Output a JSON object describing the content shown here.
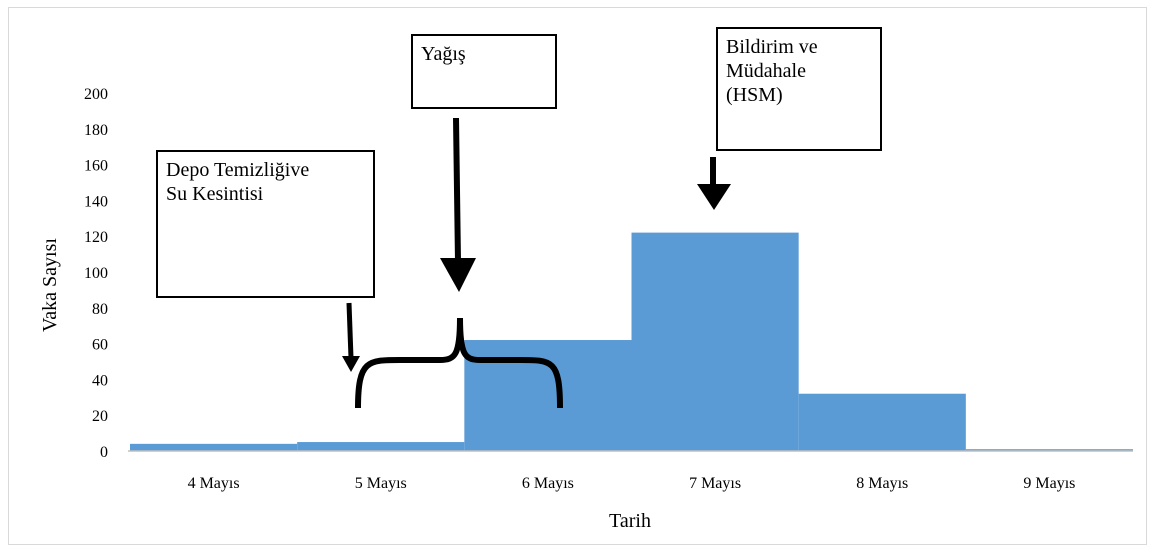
{
  "chart_data": {
    "type": "bar",
    "categories": [
      "4 Mayıs",
      "5 Mayıs",
      "6 Mayıs",
      "7 Mayıs",
      "8 Mayıs",
      "9 Mayıs"
    ],
    "values": [
      4,
      5,
      62,
      122,
      32,
      1
    ],
    "title": "",
    "xlabel": "Tarih",
    "ylabel": "Vaka Sayısı",
    "ylim": [
      0,
      200
    ],
    "yticks": [
      0,
      20,
      40,
      60,
      80,
      100,
      120,
      140,
      160,
      180,
      200
    ],
    "grid": false,
    "bar_color": "#5b9bd5",
    "annotations": [
      {
        "lines": [
          "Depo Temizliğive",
          "Su Kesintisi"
        ]
      },
      {
        "lines": [
          "Yağış"
        ]
      },
      {
        "lines": [
          "Bildirim ve",
          "Müdahale",
          "(HSM)"
        ]
      }
    ]
  }
}
